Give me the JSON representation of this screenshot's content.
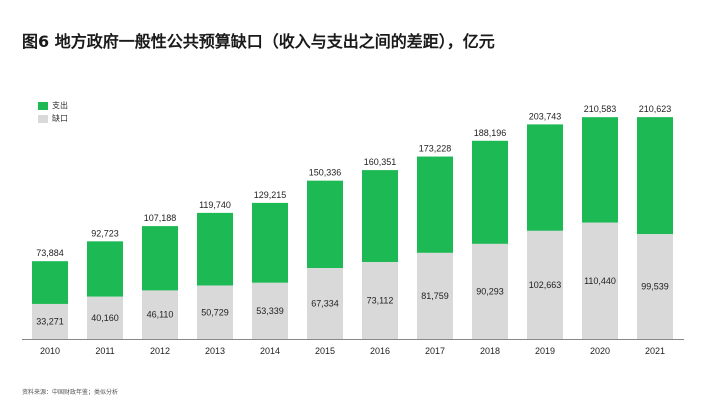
{
  "title": "图6 地方政府一般性公共预算缺口（收入与支出之间的差距），亿元",
  "source": "资料来源：中国财政年鉴；类似分析",
  "colors": {
    "spending": "#1db954",
    "gap": "#d9d9d9",
    "axis": "#888888"
  },
  "chart_data": {
    "type": "bar",
    "stacked": true,
    "title": "图6 地方政府一般性公共预算缺口（收入与支出之间的差距），亿元",
    "categories": [
      "2010",
      "2011",
      "2012",
      "2013",
      "2014",
      "2015",
      "2016",
      "2017",
      "2018",
      "2019",
      "2020",
      "2021"
    ],
    "series": [
      {
        "name": "缺口",
        "color": "#d9d9d9",
        "values": [
          33271,
          40160,
          46110,
          50729,
          53339,
          67334,
          73112,
          81759,
          90293,
          102663,
          110440,
          99539
        ]
      },
      {
        "name": "支出",
        "color": "#1db954",
        "totals": [
          73884,
          92723,
          107188,
          119740,
          129215,
          150336,
          160351,
          173228,
          188196,
          203743,
          210583,
          210623
        ]
      }
    ],
    "total_labels": [
      "73,884",
      "92,723",
      "107,188",
      "119,740",
      "129,215",
      "150,336",
      "160,351",
      "173,228",
      "188,196",
      "203,743",
      "210,583",
      "210,623"
    ],
    "gap_labels": [
      "33,271",
      "40,160",
      "46,110",
      "50,729",
      "53,339",
      "67,334",
      "73,112",
      "81,759",
      "90,293",
      "102,663",
      "110,440",
      "99,539"
    ],
    "ylim": [
      0,
      225000
    ],
    "grid": false,
    "legend": "top-left"
  }
}
